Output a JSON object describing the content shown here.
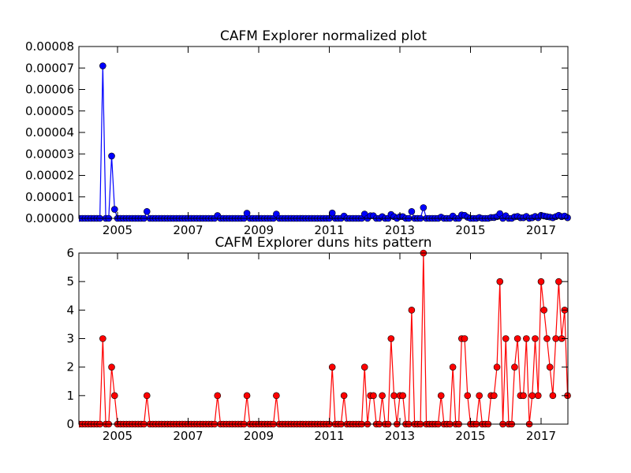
{
  "chart_data": [
    {
      "type": "line",
      "title": "CAFM Explorer normalized plot",
      "x": [
        2003.917,
        2004,
        2004.083,
        2004.167,
        2004.25,
        2004.333,
        2004.417,
        2004.5,
        2004.583,
        2004.667,
        2004.75,
        2004.833,
        2004.917,
        2005,
        2005.083,
        2005.167,
        2005.25,
        2005.333,
        2005.417,
        2005.5,
        2005.583,
        2005.667,
        2005.75,
        2005.833,
        2005.917,
        2006,
        2006.083,
        2006.167,
        2006.25,
        2006.333,
        2006.417,
        2006.5,
        2006.583,
        2006.667,
        2006.75,
        2006.833,
        2006.917,
        2007,
        2007.083,
        2007.167,
        2007.25,
        2007.333,
        2007.417,
        2007.5,
        2007.583,
        2007.667,
        2007.75,
        2007.833,
        2007.917,
        2008,
        2008.083,
        2008.167,
        2008.25,
        2008.333,
        2008.417,
        2008.5,
        2008.583,
        2008.667,
        2008.75,
        2008.833,
        2008.917,
        2009,
        2009.083,
        2009.167,
        2009.25,
        2009.333,
        2009.417,
        2009.5,
        2009.583,
        2009.667,
        2009.75,
        2009.833,
        2009.917,
        2010,
        2010.083,
        2010.167,
        2010.25,
        2010.333,
        2010.417,
        2010.5,
        2010.583,
        2010.667,
        2010.75,
        2010.833,
        2010.917,
        2011,
        2011.083,
        2011.167,
        2011.25,
        2011.333,
        2011.417,
        2011.5,
        2011.583,
        2011.667,
        2011.75,
        2011.833,
        2011.917,
        2012,
        2012.083,
        2012.167,
        2012.25,
        2012.333,
        2012.417,
        2012.5,
        2012.583,
        2012.667,
        2012.75,
        2012.833,
        2012.917,
        2013,
        2013.083,
        2013.167,
        2013.25,
        2013.333,
        2013.417,
        2013.5,
        2013.583,
        2013.667,
        2013.75,
        2013.833,
        2013.917,
        2014,
        2014.083,
        2014.167,
        2014.25,
        2014.333,
        2014.417,
        2014.5,
        2014.583,
        2014.667,
        2014.75,
        2014.833,
        2014.917,
        2015,
        2015.083,
        2015.167,
        2015.25,
        2015.333,
        2015.417,
        2015.5,
        2015.583,
        2015.667,
        2015.75,
        2015.833,
        2015.917,
        2016,
        2016.083,
        2016.167,
        2016.25,
        2016.333,
        2016.417,
        2016.5,
        2016.583,
        2016.667,
        2016.75,
        2016.833,
        2016.917,
        2017,
        2017.083,
        2017.167,
        2017.25,
        2017.333,
        2017.417,
        2017.5,
        2017.583,
        2017.667,
        2017.75
      ],
      "series": [
        {
          "color": "#0000ff",
          "values": [
            0,
            0,
            0,
            0,
            0,
            0,
            0,
            0,
            7.1e-05,
            0,
            0,
            2.9e-05,
            4.2e-06,
            0,
            0,
            0,
            0,
            0,
            0,
            0,
            0,
            0,
            0,
            3.2e-06,
            0,
            0,
            0,
            0,
            0,
            0,
            0,
            0,
            0,
            0,
            0,
            0,
            0,
            0,
            0,
            0,
            0,
            0,
            0,
            0,
            0,
            0,
            0,
            1.3e-06,
            0,
            0,
            0,
            0,
            0,
            0,
            0,
            0,
            0,
            2.4e-06,
            0,
            0,
            0,
            0,
            0,
            0,
            0,
            0,
            0,
            2e-06,
            0,
            0,
            0,
            0,
            0,
            0,
            0,
            0,
            0,
            0,
            0,
            0,
            0,
            0,
            0,
            0,
            0,
            0,
            2.5e-06,
            0,
            0,
            0,
            1.1e-06,
            0,
            0,
            0,
            0,
            0,
            0,
            2e-06,
            0,
            1.2e-06,
            1.2e-06,
            0,
            0,
            8e-07,
            0,
            0,
            1.8e-06,
            8e-07,
            0,
            8e-07,
            8e-07,
            0,
            0,
            3.2e-06,
            0,
            0,
            0,
            5e-06,
            0,
            0,
            0,
            0,
            0,
            6e-07,
            0,
            0,
            0,
            1.1e-06,
            0,
            0,
            1.6e-06,
            1.4e-06,
            5e-07,
            0,
            0,
            0,
            4e-07,
            0,
            0,
            0,
            4e-07,
            4e-07,
            8e-07,
            2.2e-06,
            0,
            1.2e-06,
            0,
            0,
            7e-07,
            9e-07,
            3e-07,
            3e-07,
            9e-07,
            0,
            3e-07,
            9e-07,
            3e-07,
            1.4e-06,
            1.1e-06,
            8e-07,
            6e-07,
            3e-07,
            8e-07,
            1.4e-06,
            8e-07,
            1.1e-06,
            3e-07
          ]
        }
      ],
      "xlim": [
        2003.905,
        2017.76
      ],
      "xticks": [
        2005,
        2007,
        2009,
        2011,
        2013,
        2015,
        2017
      ],
      "ylim": [
        0,
        8e-05
      ],
      "yticks": [
        {
          "value": 0,
          "label": "0.00000"
        },
        {
          "value": 1e-05,
          "label": "0.00001"
        },
        {
          "value": 2e-05,
          "label": "0.00002"
        },
        {
          "value": 3e-05,
          "label": "0.00003"
        },
        {
          "value": 4e-05,
          "label": "0.00004"
        },
        {
          "value": 5e-05,
          "label": "0.00005"
        },
        {
          "value": 6e-05,
          "label": "0.00006"
        },
        {
          "value": 7e-05,
          "label": "0.00007"
        },
        {
          "value": 8e-05,
          "label": "0.00008"
        }
      ],
      "grid": false
    },
    {
      "type": "line",
      "title": "CAFM Explorer duns hits pattern",
      "x": [
        2003.917,
        2004,
        2004.083,
        2004.167,
        2004.25,
        2004.333,
        2004.417,
        2004.5,
        2004.583,
        2004.667,
        2004.75,
        2004.833,
        2004.917,
        2005,
        2005.083,
        2005.167,
        2005.25,
        2005.333,
        2005.417,
        2005.5,
        2005.583,
        2005.667,
        2005.75,
        2005.833,
        2005.917,
        2006,
        2006.083,
        2006.167,
        2006.25,
        2006.333,
        2006.417,
        2006.5,
        2006.583,
        2006.667,
        2006.75,
        2006.833,
        2006.917,
        2007,
        2007.083,
        2007.167,
        2007.25,
        2007.333,
        2007.417,
        2007.5,
        2007.583,
        2007.667,
        2007.75,
        2007.833,
        2007.917,
        2008,
        2008.083,
        2008.167,
        2008.25,
        2008.333,
        2008.417,
        2008.5,
        2008.583,
        2008.667,
        2008.75,
        2008.833,
        2008.917,
        2009,
        2009.083,
        2009.167,
        2009.25,
        2009.333,
        2009.417,
        2009.5,
        2009.583,
        2009.667,
        2009.75,
        2009.833,
        2009.917,
        2010,
        2010.083,
        2010.167,
        2010.25,
        2010.333,
        2010.417,
        2010.5,
        2010.583,
        2010.667,
        2010.75,
        2010.833,
        2010.917,
        2011,
        2011.083,
        2011.167,
        2011.25,
        2011.333,
        2011.417,
        2011.5,
        2011.583,
        2011.667,
        2011.75,
        2011.833,
        2011.917,
        2012,
        2012.083,
        2012.167,
        2012.25,
        2012.333,
        2012.417,
        2012.5,
        2012.583,
        2012.667,
        2012.75,
        2012.833,
        2012.917,
        2013,
        2013.083,
        2013.167,
        2013.25,
        2013.333,
        2013.417,
        2013.5,
        2013.583,
        2013.667,
        2013.75,
        2013.833,
        2013.917,
        2014,
        2014.083,
        2014.167,
        2014.25,
        2014.333,
        2014.417,
        2014.5,
        2014.583,
        2014.667,
        2014.75,
        2014.833,
        2014.917,
        2015,
        2015.083,
        2015.167,
        2015.25,
        2015.333,
        2015.417,
        2015.5,
        2015.583,
        2015.667,
        2015.75,
        2015.833,
        2015.917,
        2016,
        2016.083,
        2016.167,
        2016.25,
        2016.333,
        2016.417,
        2016.5,
        2016.583,
        2016.667,
        2016.75,
        2016.833,
        2016.917,
        2017,
        2017.083,
        2017.167,
        2017.25,
        2017.333,
        2017.417,
        2017.5,
        2017.583,
        2017.667,
        2017.75
      ],
      "series": [
        {
          "color": "#ff0000",
          "values": [
            0,
            0,
            0,
            0,
            0,
            0,
            0,
            0,
            3,
            0,
            0,
            2,
            1,
            0,
            0,
            0,
            0,
            0,
            0,
            0,
            0,
            0,
            0,
            1,
            0,
            0,
            0,
            0,
            0,
            0,
            0,
            0,
            0,
            0,
            0,
            0,
            0,
            0,
            0,
            0,
            0,
            0,
            0,
            0,
            0,
            0,
            0,
            1,
            0,
            0,
            0,
            0,
            0,
            0,
            0,
            0,
            0,
            1,
            0,
            0,
            0,
            0,
            0,
            0,
            0,
            0,
            0,
            1,
            0,
            0,
            0,
            0,
            0,
            0,
            0,
            0,
            0,
            0,
            0,
            0,
            0,
            0,
            0,
            0,
            0,
            0,
            2,
            0,
            0,
            0,
            1,
            0,
            0,
            0,
            0,
            0,
            0,
            2,
            0,
            1,
            1,
            0,
            0,
            1,
            0,
            0,
            3,
            1,
            0,
            1,
            1,
            0,
            0,
            4,
            0,
            0,
            0,
            6,
            0,
            0,
            0,
            0,
            0,
            1,
            0,
            0,
            0,
            2,
            0,
            0,
            3,
            3,
            1,
            0,
            0,
            0,
            1,
            0,
            0,
            0,
            1,
            1,
            2,
            5,
            0,
            3,
            0,
            0,
            2,
            3,
            1,
            1,
            3,
            0,
            1,
            3,
            1,
            5,
            4,
            3,
            2,
            1,
            3,
            5,
            3,
            4,
            1
          ]
        }
      ],
      "xlim": [
        2003.905,
        2017.76
      ],
      "xticks": [
        2005,
        2007,
        2009,
        2011,
        2013,
        2015,
        2017
      ],
      "ylim": [
        0,
        6
      ],
      "yticks": [
        0,
        1,
        2,
        3,
        4,
        5,
        6
      ],
      "grid": false
    }
  ]
}
